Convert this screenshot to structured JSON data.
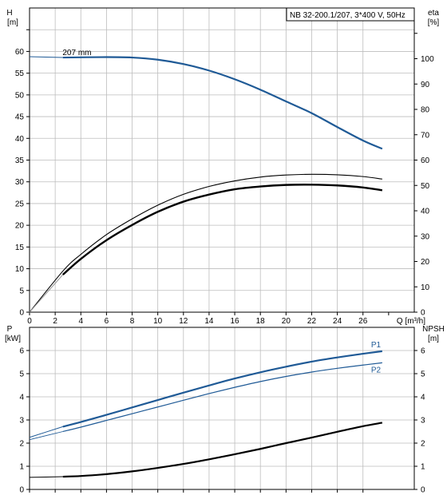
{
  "title_box": "NB 32-200.1/207, 3*400 V, 50Hz",
  "colors": {
    "head": "#1f5a96",
    "efficiency": "#000000",
    "power": "#1f5a96",
    "npsh": "#000000",
    "grid": "#bdbdbd"
  },
  "chart_data": [
    {
      "type": "line",
      "name": "head-efficiency",
      "left_axis_label": [
        "H",
        "[m]"
      ],
      "right_axis_label": [
        "eta",
        "[%]"
      ],
      "x_label": "Q [m³/h]",
      "x_ticks": [
        0,
        2,
        4,
        6,
        8,
        10,
        12,
        14,
        16,
        18,
        20,
        22,
        24,
        26
      ],
      "xlim": [
        0,
        30
      ],
      "left_ticks": [
        0,
        5,
        10,
        15,
        20,
        25,
        30,
        35,
        40,
        45,
        50,
        55,
        60
      ],
      "left_ylim": [
        0,
        70
      ],
      "right_ticks": [
        0,
        10,
        20,
        30,
        40,
        50,
        60,
        70,
        80,
        90,
        100
      ],
      "right_ylim": [
        0,
        120
      ],
      "grid": true,
      "annotations": [
        {
          "text": "207 mm",
          "x": 2.7,
          "y": 58.6
        }
      ],
      "series": [
        {
          "axis": "left",
          "style": "head",
          "x": [
            0,
            2.6,
            6,
            8,
            10,
            12,
            14,
            16,
            18,
            20,
            22,
            24,
            26,
            27.5
          ],
          "y": [
            58.8,
            58.6,
            58.7,
            58.6,
            58.1,
            57.1,
            55.6,
            53.6,
            51.2,
            48.5,
            45.8,
            42.6,
            39.5,
            37.6
          ],
          "dash_to_origin": false
        },
        {
          "axis": "right",
          "style": "eta-thin",
          "x": [
            0,
            2.6,
            4,
            6,
            8,
            10,
            12,
            14,
            16,
            18,
            20,
            22,
            24,
            26,
            27.5
          ],
          "y": [
            0,
            16.2,
            22.8,
            30.6,
            36.8,
            42.2,
            46.5,
            49.6,
            51.8,
            53.3,
            54.1,
            54.4,
            54.2,
            53.5,
            52.5
          ]
        },
        {
          "axis": "right",
          "style": "eta-thick",
          "x": [
            2.6,
            4,
            6,
            8,
            10,
            12,
            14,
            16,
            18,
            20,
            22,
            24,
            26,
            27.5
          ],
          "y": [
            14.8,
            21.0,
            28.4,
            34.4,
            39.6,
            43.6,
            46.4,
            48.5,
            49.6,
            50.2,
            50.3,
            50.0,
            49.2,
            48.1
          ]
        }
      ]
    },
    {
      "type": "line",
      "name": "power-npsh",
      "left_axis_label": [
        "P",
        "[kW]"
      ],
      "right_axis_label": [
        "NPSH",
        "[m]"
      ],
      "left_ticks": [
        0,
        1,
        2,
        3,
        4,
        5,
        6
      ],
      "left_ylim": [
        0,
        7
      ],
      "right_ticks": [
        0,
        1,
        2,
        3,
        4,
        5,
        6
      ],
      "right_ylim": [
        0,
        7
      ],
      "grid": true,
      "series": [
        {
          "name": "P1",
          "axis": "left",
          "style": "power-thick",
          "x": [
            2.6,
            4,
            6,
            8,
            10,
            12,
            14,
            16,
            18,
            20,
            22,
            24,
            26,
            27.5
          ],
          "y": [
            2.71,
            2.91,
            3.22,
            3.54,
            3.86,
            4.18,
            4.49,
            4.79,
            5.06,
            5.3,
            5.52,
            5.7,
            5.86,
            5.97
          ]
        },
        {
          "name": "P2",
          "axis": "left",
          "style": "power-thin",
          "x": [
            2.6,
            4,
            6,
            8,
            10,
            12,
            14,
            16,
            18,
            20,
            22,
            24,
            26,
            27.5
          ],
          "y": [
            2.5,
            2.69,
            2.98,
            3.27,
            3.56,
            3.85,
            4.14,
            4.41,
            4.66,
            4.88,
            5.07,
            5.23,
            5.37,
            5.47
          ]
        },
        {
          "axis": "left",
          "style": "power-lead",
          "x": [
            0,
            2.6
          ],
          "y": [
            2.25,
            2.71
          ]
        },
        {
          "axis": "left",
          "style": "power-lead-thin",
          "x": [
            0,
            2.6
          ],
          "y": [
            2.15,
            2.5
          ]
        },
        {
          "axis": "right",
          "style": "npsh",
          "x": [
            2.6,
            4,
            6,
            8,
            10,
            12,
            14,
            16,
            18,
            20,
            22,
            24,
            26,
            27.5
          ],
          "y": [
            0.55,
            0.58,
            0.66,
            0.78,
            0.93,
            1.1,
            1.3,
            1.52,
            1.75,
            2.0,
            2.24,
            2.49,
            2.73,
            2.88
          ]
        },
        {
          "axis": "right",
          "style": "npsh-lead",
          "x": [
            0,
            2.6
          ],
          "y": [
            0.52,
            0.55
          ]
        }
      ]
    }
  ]
}
